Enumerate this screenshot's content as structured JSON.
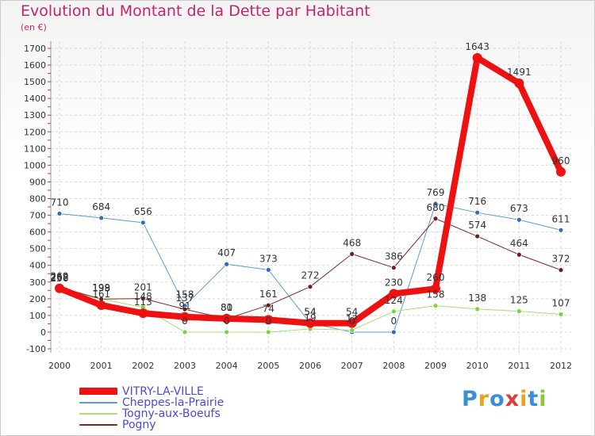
{
  "header": {
    "title": "Evolution du Montant de la Dette par Habitant",
    "unit": "(en €)"
  },
  "logo": {
    "text": "Proxiti",
    "letters": [
      {
        "ch": "P",
        "color": "#3a8fd8"
      },
      {
        "ch": "r",
        "color": "#f0a020"
      },
      {
        "ch": "o",
        "color": "#3a8fd8"
      },
      {
        "ch": "x",
        "color": "#e03a3a"
      },
      {
        "ch": "i",
        "color": "#f0a020"
      },
      {
        "ch": "t",
        "color": "#3a8fd8"
      },
      {
        "ch": "i",
        "color": "#8cc63f"
      }
    ]
  },
  "chart_data": {
    "type": "line",
    "title": "Evolution du Montant de la Dette par Habitant",
    "ylabel": "(en €)",
    "xlabel": "",
    "ylim": [
      -100,
      1700
    ],
    "yticks": [
      -100,
      0,
      100,
      200,
      300,
      400,
      500,
      600,
      700,
      800,
      900,
      1000,
      1100,
      1200,
      1300,
      1400,
      1500,
      1600,
      1700
    ],
    "categories": [
      "2000",
      "2001",
      "2002",
      "2003",
      "2004",
      "2005",
      "2006",
      "2007",
      "2008",
      "2009",
      "2010",
      "2011",
      "2012"
    ],
    "grid": true,
    "legend_position": "bottom-left",
    "series": [
      {
        "name": "Cheppes-la-Prairie",
        "color": "#5b9bd5",
        "marker": "#2f6fb5",
        "width": 1,
        "values": [
          710,
          684,
          656,
          158,
          407,
          373,
          54,
          0,
          0,
          769,
          716,
          673,
          611
        ]
      },
      {
        "name": "Togny-aux-Boeufs",
        "color": "#a8e06e",
        "marker": "#7dd13e",
        "width": 1,
        "values": [
          256,
          199,
          148,
          0,
          0,
          0,
          19,
          12,
          124,
          158,
          138,
          125,
          107
        ]
      },
      {
        "name": "Pogny",
        "color": "#7a2a2a",
        "marker": "#6b1f1f",
        "width": 1,
        "values": [
          269,
          198,
          201,
          137,
          80,
          161,
          272,
          468,
          386,
          680,
          574,
          464,
          372
        ]
      },
      {
        "name": "VITRY-LA-VILLE",
        "color": "#ee1111",
        "marker": "#ee1111",
        "width": 8,
        "values": [
          262,
          161,
          113,
          91,
          81,
          74,
          54,
          54,
          230,
          260,
          1643,
          1491,
          960
        ]
      }
    ],
    "data_labels": [
      [
        710,
        684,
        656,
        158,
        407,
        373,
        54,
        0,
        0,
        769,
        716,
        673,
        611
      ],
      [
        256,
        199,
        148,
        0,
        0,
        0,
        19,
        12,
        124,
        158,
        138,
        125,
        107
      ],
      [
        269,
        198,
        201,
        137,
        80,
        161,
        272,
        468,
        386,
        680,
        574,
        464,
        372
      ],
      [
        262,
        161,
        113,
        91,
        81,
        74,
        54,
        54,
        230,
        260,
        1643,
        1491,
        960
      ]
    ]
  },
  "legend": [
    {
      "label": "VITRY-LA-VILLE",
      "color": "#ee1111",
      "thick": true
    },
    {
      "label": "Cheppes-la-Prairie",
      "color": "#5b9bd5",
      "thick": false
    },
    {
      "label": "Togny-aux-Boeufs",
      "color": "#a8e06e",
      "thick": false
    },
    {
      "label": "Pogny",
      "color": "#7a2a2a",
      "thick": false
    }
  ]
}
